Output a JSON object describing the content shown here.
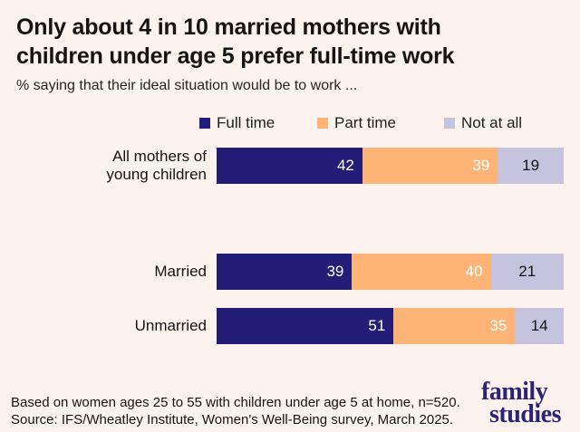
{
  "header": {
    "title": "Only about 4 in 10 married mothers with children under age 5 prefer full-time work",
    "subtitle": "% saying that their ideal situation would be to work ..."
  },
  "chart_data": {
    "type": "bar",
    "variant": "horizontal-stacked",
    "stacked": true,
    "categories": [
      "All mothers of\nyoung children",
      "Married",
      "Unmarried"
    ],
    "series": [
      {
        "name": "Full time",
        "color": "#241d78",
        "label_color": "#ffffff",
        "label_align": "right",
        "values": [
          42,
          39,
          51
        ]
      },
      {
        "name": "Part time",
        "color": "#fdb476",
        "label_color": "#ffffff",
        "label_align": "right",
        "values": [
          39,
          40,
          35
        ]
      },
      {
        "name": "Not at all",
        "color": "#c5c3dd",
        "label_color": "#141414",
        "label_align": "center",
        "values": [
          19,
          21,
          14
        ]
      }
    ],
    "xlim": [
      0,
      100
    ],
    "grid": false,
    "value_labels": true,
    "legend_position": "top"
  },
  "footer": {
    "line1": "Based on women ages 25 to 55 with children under age 5 at home, n=520.",
    "line2": "Source: IFS/Wheatley Institute, Women's Well-Being survey, March 2025."
  },
  "logo": {
    "line1": "family",
    "line2": "studies",
    "color": "#2b2376"
  },
  "colors": {
    "background": "#fdf3ee",
    "title_text": "#141414",
    "full_time": "#241d78",
    "part_time": "#fdb476",
    "not_at_all": "#c5c3dd"
  }
}
